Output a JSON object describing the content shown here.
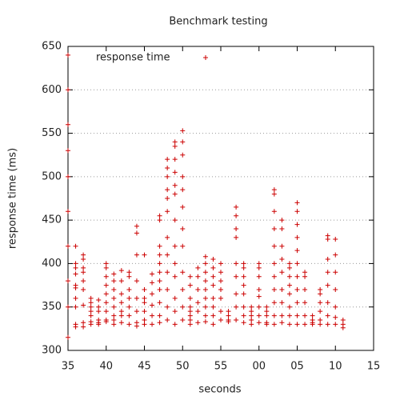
{
  "chart_data": {
    "type": "scatter",
    "title": "Benchmark testing",
    "x_label": "seconds",
    "y_label": "response time (ms)",
    "xlim": [
      35,
      75
    ],
    "ylim": [
      300,
      650
    ],
    "xticks": [
      35,
      40,
      45,
      50,
      55,
      {
        "value": 60,
        "label": "00"
      },
      {
        "value": 65,
        "label": "05"
      },
      {
        "value": 70,
        "label": "10"
      },
      {
        "value": 75,
        "label": "15"
      }
    ],
    "yticks": [
      300,
      350,
      400,
      450,
      500,
      550,
      600,
      650
    ],
    "grid": "y",
    "legend": "top left",
    "series": [
      {
        "name": "response time",
        "color": "#cc0000",
        "x": [
          35,
          35,
          35,
          35,
          35,
          35,
          35,
          35,
          35,
          35,
          36,
          36,
          36,
          36,
          36,
          36,
          36,
          36,
          36,
          36,
          37,
          37,
          37,
          37,
          37,
          37,
          37,
          37,
          37,
          38,
          38,
          38,
          38,
          38,
          38,
          38,
          39,
          39,
          39,
          39,
          39,
          39,
          40,
          40,
          40,
          40,
          40,
          40,
          40,
          40,
          40,
          41,
          41,
          41,
          41,
          41,
          41,
          41,
          41,
          42,
          42,
          42,
          42,
          42,
          42,
          42,
          43,
          43,
          43,
          43,
          43,
          43,
          43,
          44,
          44,
          44,
          44,
          44,
          44,
          44,
          44,
          45,
          45,
          45,
          45,
          45,
          45,
          45,
          46,
          46,
          46,
          46,
          46,
          46,
          47,
          47,
          47,
          47,
          47,
          47,
          47,
          47,
          47,
          47,
          47,
          48,
          48,
          48,
          48,
          48,
          48,
          48,
          48,
          48,
          48,
          48,
          48,
          49,
          49,
          49,
          49,
          49,
          49,
          49,
          49,
          49,
          49,
          49,
          49,
          49,
          50,
          50,
          50,
          50,
          50,
          50,
          50,
          50,
          50,
          50,
          50,
          50,
          51,
          51,
          51,
          51,
          51,
          51,
          51,
          51,
          52,
          52,
          52,
          52,
          52,
          52,
          53,
          53,
          53,
          53,
          53,
          53,
          53,
          53,
          53,
          54,
          54,
          54,
          54,
          54,
          54,
          54,
          54,
          55,
          55,
          55,
          55,
          55,
          55,
          55,
          56,
          56,
          56,
          56,
          57,
          57,
          57,
          57,
          57,
          57,
          57,
          57,
          57,
          58,
          58,
          58,
          58,
          58,
          58,
          58,
          58,
          59,
          59,
          59,
          59,
          59,
          60,
          60,
          60,
          60,
          60,
          60,
          60,
          60,
          61,
          61,
          61,
          61,
          61,
          62,
          62,
          62,
          62,
          62,
          62,
          62,
          62,
          62,
          62,
          62,
          63,
          63,
          63,
          63,
          63,
          63,
          63,
          63,
          63,
          64,
          64,
          64,
          64,
          64,
          64,
          64,
          64,
          65,
          65,
          65,
          65,
          65,
          65,
          65,
          65,
          65,
          65,
          65,
          66,
          66,
          66,
          66,
          66,
          66,
          67,
          67,
          67,
          67,
          68,
          68,
          68,
          68,
          68,
          68,
          69,
          69,
          69,
          69,
          69,
          69,
          69,
          69,
          70,
          70,
          70,
          70,
          70,
          70,
          70,
          71,
          71,
          71
        ],
        "values": [
          640,
          600,
          560,
          530,
          500,
          460,
          420,
          380,
          350,
          315,
          420,
          400,
          395,
          388,
          375,
          372,
          360,
          350,
          330,
          327,
          410,
          405,
          395,
          390,
          380,
          370,
          352,
          332,
          327,
          360,
          355,
          350,
          345,
          340,
          333,
          330,
          358,
          350,
          345,
          335,
          332,
          330,
          400,
          395,
          385,
          375,
          365,
          355,
          345,
          335,
          333,
          388,
          380,
          370,
          360,
          350,
          340,
          335,
          330,
          392,
          380,
          365,
          355,
          345,
          340,
          332,
          390,
          385,
          370,
          360,
          350,
          340,
          330,
          443,
          435,
          410,
          380,
          360,
          345,
          332,
          328,
          410,
          370,
          360,
          355,
          345,
          335,
          330,
          388,
          378,
          365,
          352,
          340,
          330,
          455,
          450,
          420,
          410,
          400,
          390,
          380,
          370,
          355,
          340,
          332,
          520,
          510,
          500,
          485,
          475,
          460,
          430,
          410,
          390,
          370,
          350,
          335,
          540,
          535,
          520,
          505,
          490,
          480,
          450,
          420,
          400,
          385,
          360,
          345,
          330,
          553,
          540,
          525,
          500,
          485,
          465,
          440,
          420,
          390,
          370,
          350,
          335,
          385,
          375,
          360,
          350,
          345,
          340,
          335,
          330,
          395,
          385,
          370,
          355,
          345,
          332,
          408,
          400,
          390,
          380,
          370,
          360,
          350,
          340,
          333,
          405,
          395,
          385,
          375,
          360,
          350,
          340,
          330,
          400,
          390,
          380,
          370,
          360,
          345,
          335,
          345,
          340,
          335,
          333,
          465,
          455,
          440,
          430,
          400,
          385,
          365,
          350,
          335,
          400,
          395,
          385,
          375,
          365,
          350,
          340,
          332,
          350,
          345,
          340,
          335,
          330,
          400,
          395,
          385,
          370,
          362,
          350,
          340,
          332,
          350,
          345,
          340,
          332,
          330,
          485,
          480,
          460,
          440,
          420,
          400,
          385,
          370,
          355,
          340,
          330,
          450,
          440,
          420,
          405,
          390,
          370,
          355,
          340,
          332,
          400,
          395,
          385,
          375,
          365,
          350,
          340,
          330,
          470,
          460,
          445,
          430,
          415,
          400,
          385,
          370,
          355,
          340,
          330,
          390,
          385,
          370,
          355,
          340,
          330,
          340,
          335,
          332,
          330,
          370,
          365,
          355,
          345,
          335,
          330,
          432,
          428,
          405,
          390,
          375,
          355,
          340,
          330,
          428,
          410,
          390,
          370,
          350,
          338,
          330,
          335,
          330,
          326
        ]
      }
    ]
  }
}
